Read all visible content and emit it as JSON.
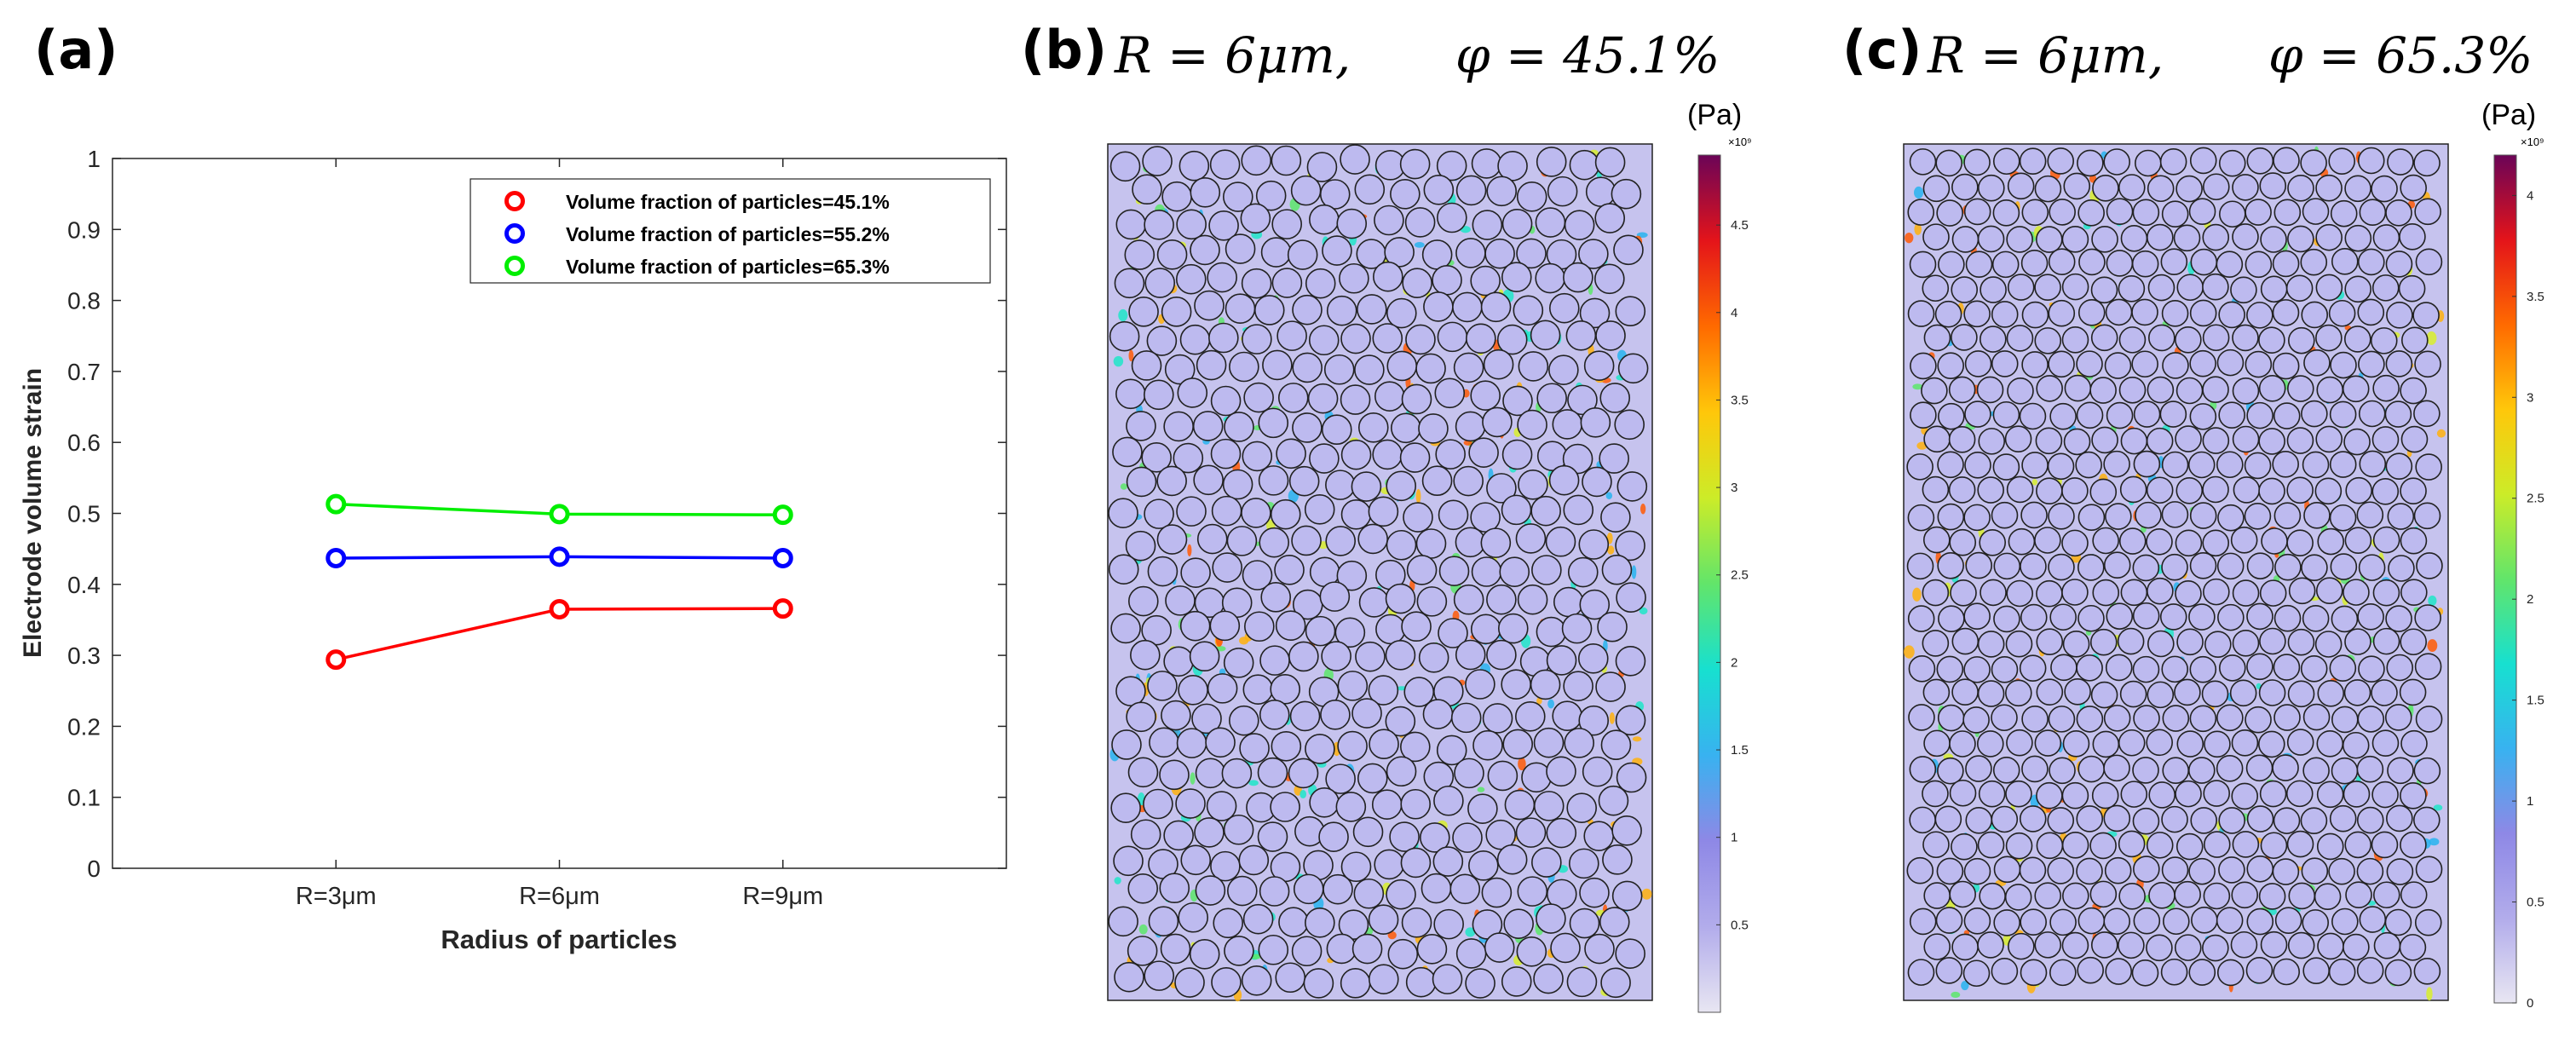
{
  "chart_data": [
    {
      "panel": "(a)",
      "type": "line",
      "categories": [
        "R=3μm",
        "R=6μm",
        "R=9μm"
      ],
      "xlabel": "Radius of particles",
      "ylabel": "Electrode volume strain",
      "ylim": [
        0,
        1
      ],
      "yticks": [
        "0",
        "0.1",
        "0.2",
        "0.3",
        "0.4",
        "0.5",
        "0.6",
        "0.7",
        "0.8",
        "0.9",
        "1"
      ],
      "grid": false,
      "legend_position": "top-right",
      "series": [
        {
          "name": "Volume fraction of particles=45.1%",
          "color": "#ff0000",
          "values": [
            0.294,
            0.365,
            0.366
          ]
        },
        {
          "name": "Volume fraction of particles=55.2%",
          "color": "#0000ff",
          "values": [
            0.437,
            0.439,
            0.437
          ]
        },
        {
          "name": "Volume fraction of particles=65.3%",
          "color": "#00ee00",
          "values": [
            0.513,
            0.499,
            0.498
          ]
        }
      ]
    },
    {
      "panel": "(b)",
      "type": "heatmap",
      "title_r": "R = 6μm,",
      "title_phi": "φ = 45.1%",
      "colorbar_unit": "(Pa)",
      "colorbar_exponent": "×10⁹",
      "colorbar_max": 4.9,
      "colorbar_ticks": [
        "0.5",
        "1",
        "1.5",
        "2",
        "2.5",
        "3",
        "3.5",
        "4",
        "4.5"
      ]
    },
    {
      "panel": "(c)",
      "type": "heatmap",
      "title_r": "R = 6μm,",
      "title_phi": "φ = 65.3%",
      "colorbar_unit": "(Pa)",
      "colorbar_exponent": "×10⁹",
      "colorbar_max": 4.2,
      "colorbar_ticks": [
        "0",
        "0.5",
        "1",
        "1.5",
        "2",
        "2.5",
        "3",
        "3.5",
        "4"
      ]
    }
  ]
}
